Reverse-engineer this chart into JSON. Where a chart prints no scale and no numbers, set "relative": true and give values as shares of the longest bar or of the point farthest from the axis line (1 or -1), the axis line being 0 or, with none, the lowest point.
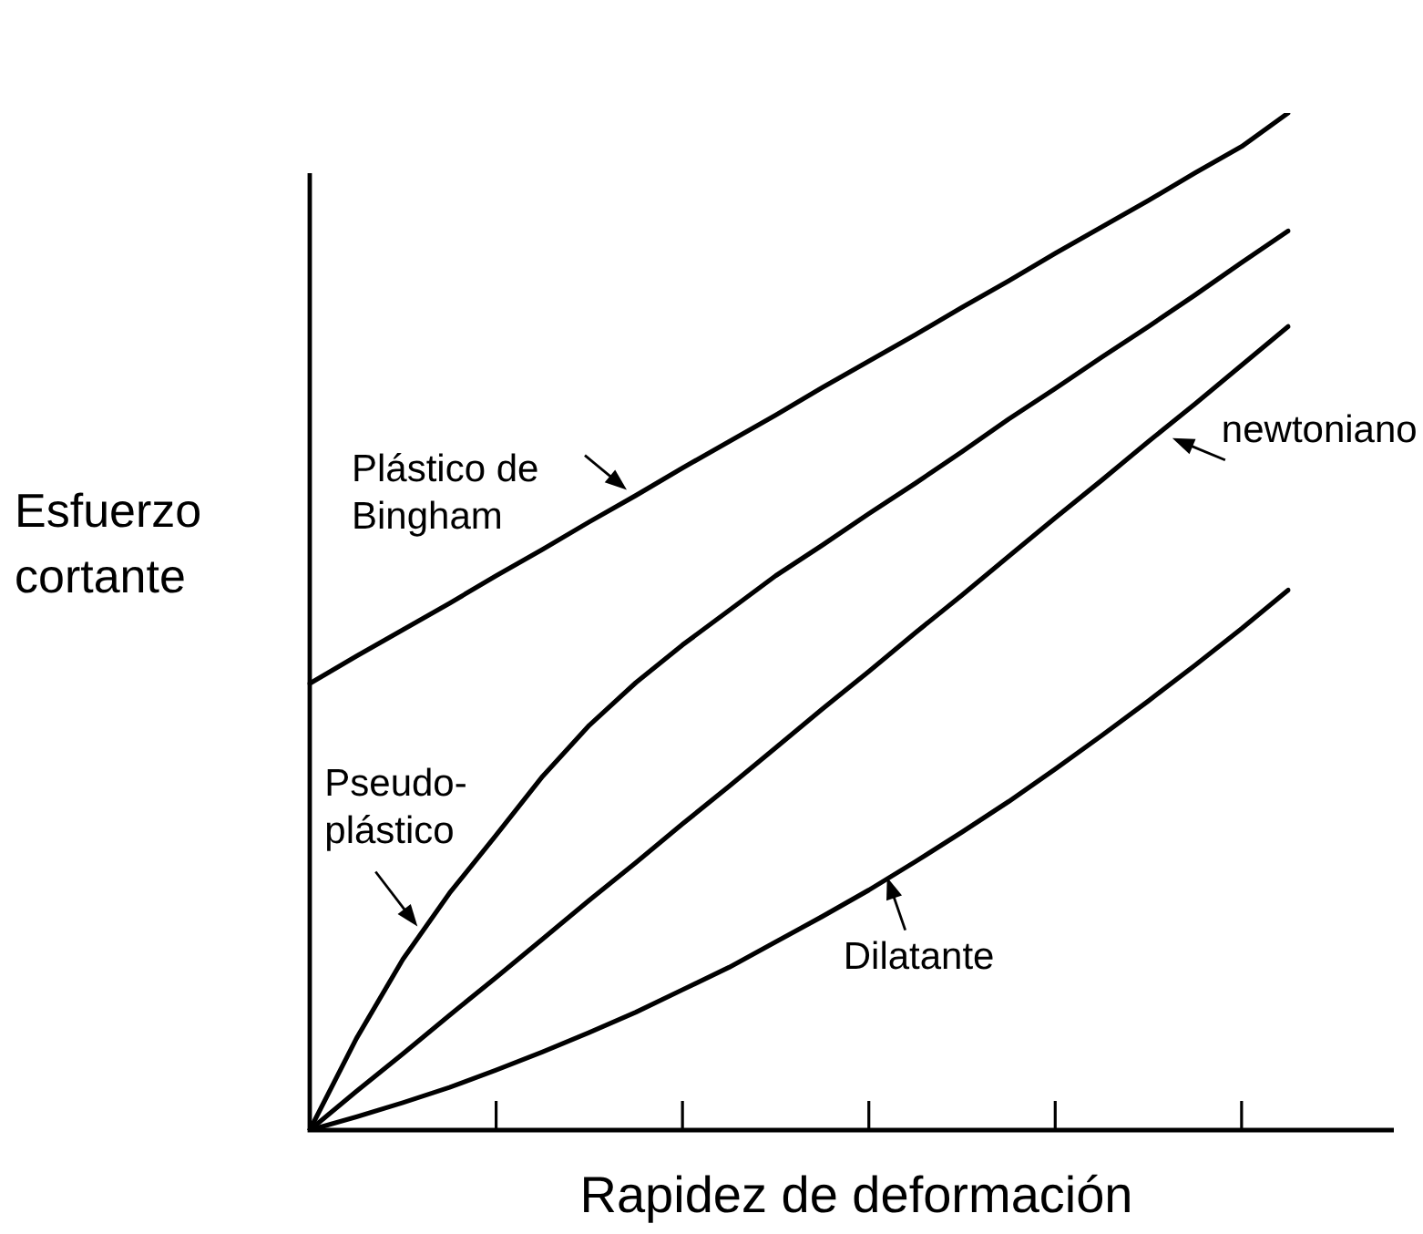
{
  "chart_data": {
    "type": "line",
    "relative": true,
    "xlabel": "Rapidez de deformación",
    "ylabel": "Esfuerzo cortante",
    "marker": "none",
    "line_style": "solid",
    "categories": [
      null,
      null,
      null,
      null,
      null,
      null,
      null,
      null,
      null,
      null,
      null,
      null,
      null,
      null,
      null,
      null,
      null,
      null,
      null,
      null,
      null,
      null
    ],
    "series": [
      {
        "name": "Plástico de Bingham",
        "color": "#000000",
        "values": [
          0.439,
          0.466,
          0.492,
          0.518,
          0.545,
          0.571,
          0.598,
          0.624,
          0.651,
          0.677,
          0.703,
          0.73,
          0.756,
          0.782,
          0.809,
          0.835,
          0.862,
          0.888,
          0.914,
          0.941,
          0.967,
          1
        ]
      },
      {
        "name": "Pseudo-plástico",
        "color": "#000000",
        "values": [
          0,
          0.09,
          0.168,
          0.233,
          0.29,
          0.348,
          0.398,
          0.44,
          0.477,
          0.511,
          0.545,
          0.575,
          0.606,
          0.636,
          0.667,
          0.699,
          0.729,
          0.76,
          0.79,
          0.821,
          0.853,
          0.884
        ]
      },
      {
        "name": "newtoniano",
        "color": "#000000",
        "values": [
          0,
          0.038,
          0.075,
          0.113,
          0.15,
          0.188,
          0.226,
          0.263,
          0.301,
          0.338,
          0.376,
          0.414,
          0.451,
          0.489,
          0.526,
          0.564,
          0.602,
          0.639,
          0.677,
          0.714,
          0.752,
          0.79
        ]
      },
      {
        "name": "Dilatante",
        "color": "#000000",
        "values": [
          0,
          0.013,
          0.027,
          0.042,
          0.059,
          0.077,
          0.096,
          0.116,
          0.138,
          0.16,
          0.185,
          0.21,
          0.236,
          0.264,
          0.293,
          0.323,
          0.355,
          0.388,
          0.422,
          0.457,
          0.493,
          0.531
        ]
      }
    ]
  }
}
